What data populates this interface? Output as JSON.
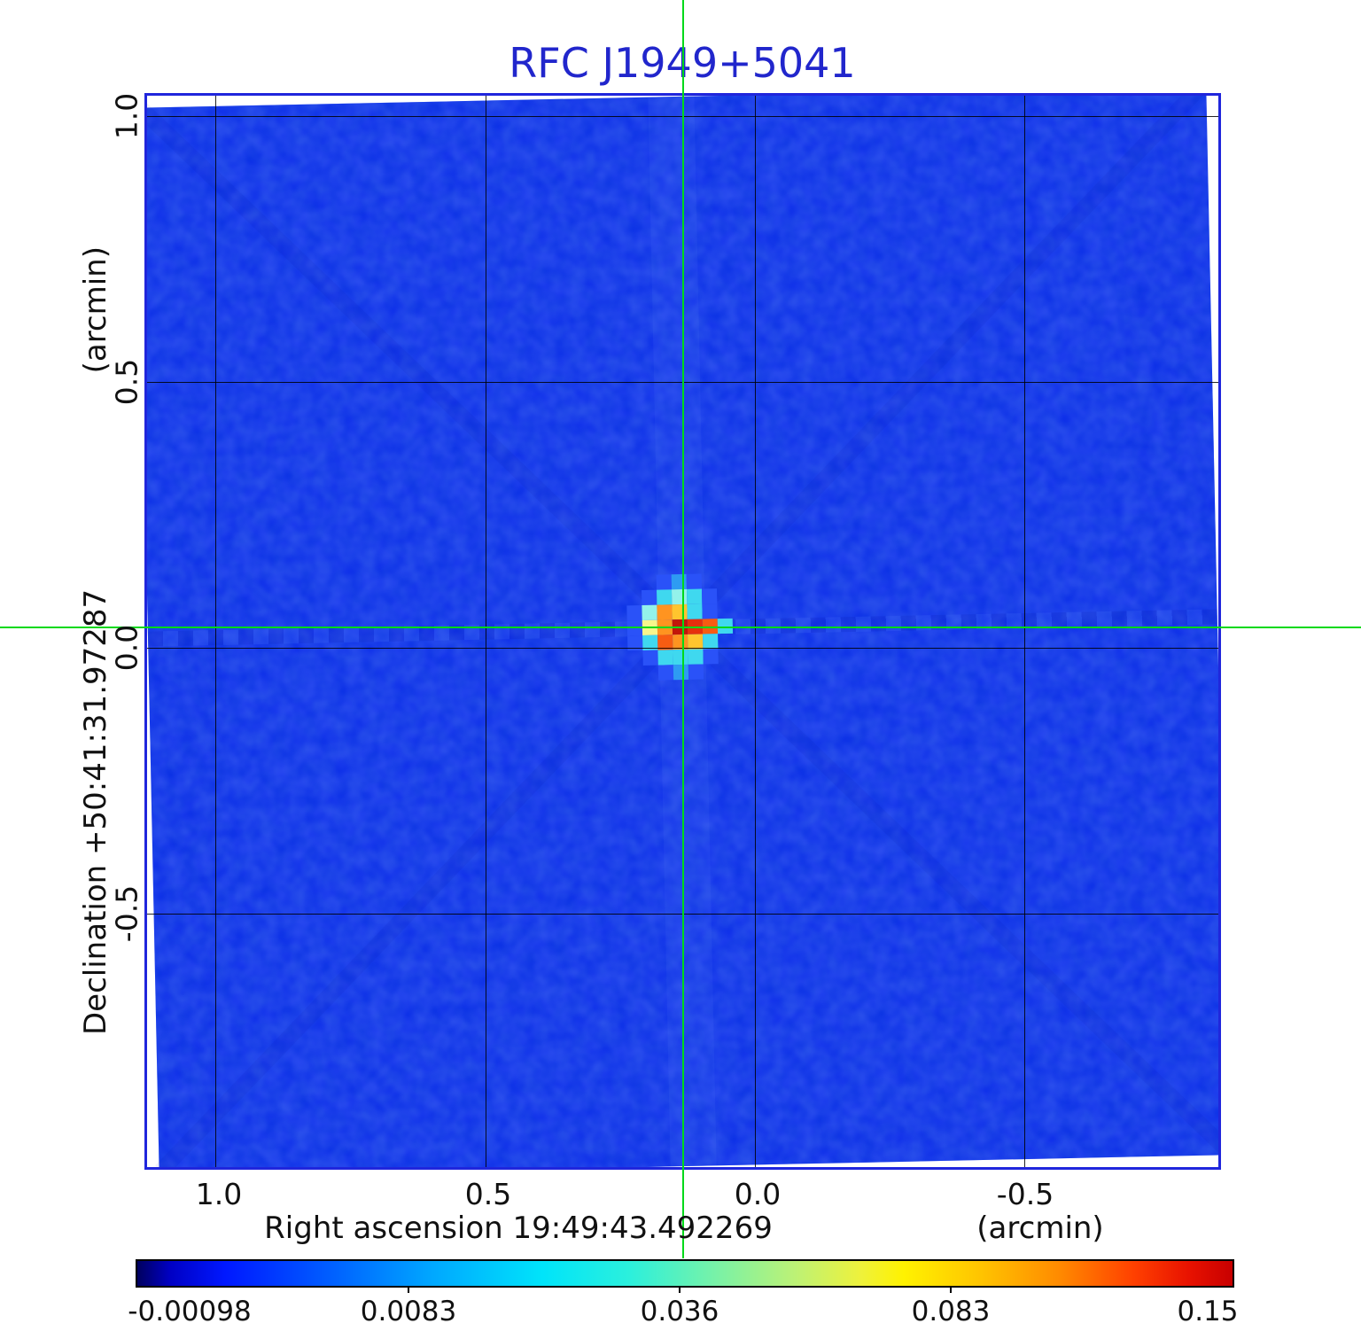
{
  "title": "RFC J1949+5041",
  "chart_data": {
    "type": "heatmap",
    "title": "RFC J1949+5041",
    "description": "Radio interferometric intensity map: uniform blue noise background with one compact bright source at the crosshair position near map center.",
    "x_axis": {
      "title": "Right ascension  19:49:43.492269",
      "unit_label": "(arcmin)",
      "tick_labels": [
        "1.0",
        "0.5",
        "0.0",
        "-0.5"
      ],
      "tick_values_arcmin": [
        1.0,
        0.5,
        0.0,
        -0.5
      ],
      "range_arcmin": [
        1.13,
        -0.86
      ]
    },
    "y_axis": {
      "title": "Declination  +50:41:31.97287",
      "unit_label": "(arcmin)",
      "tick_labels": [
        "1.0",
        "0.5",
        "0.0",
        "-0.5"
      ],
      "tick_values_arcmin": [
        1.0,
        0.5,
        0.0,
        -0.5
      ],
      "range_arcmin": [
        1.04,
        -0.98
      ]
    },
    "colorbar": {
      "tick_labels": [
        "-0.00098",
        "0.0083",
        "0.036",
        "0.083",
        "0.15"
      ],
      "min_value": -0.00098,
      "max_value": 0.15,
      "gradient": [
        "#00005f 0%",
        "#0000c4 3%",
        "#0018ff 8%",
        "#005aff 17%",
        "#00a8ff 27%",
        "#00e4fa 37%",
        "#2cf0dc 45%",
        "#7af2a6 53%",
        "#bcf276 60%",
        "#eef23c 66%",
        "#fff200 70%",
        "#ffc400 77%",
        "#ff8c00 84%",
        "#ff4000 91%",
        "#e81200 96%",
        "#c80000 100%"
      ]
    },
    "crosshair": {
      "x_arcmin": 0.14,
      "y_arcmin": 0.04
    },
    "source": {
      "center_x_arcmin": 0.14,
      "center_y_arcmin": 0.04,
      "peak_value": 0.15,
      "palette": {
        "b1": "#2a52f8",
        "c1": "#2e9bf2",
        "c2": "#3fd8ef",
        "c3": "#93f2ea",
        "y1": "#f7f58c",
        "y2": "#ffc52e",
        "o1": "#ff9420",
        "o2": "#f75c12",
        "r1": "#e62f0d",
        "r2": "#c2170a"
      },
      "pixels": [
        [
          "",
          "",
          "b1",
          "c1",
          "b1",
          "",
          ""
        ],
        [
          "",
          "b1",
          "c2",
          "c3",
          "c2",
          "b1",
          ""
        ],
        [
          "b1",
          "c3",
          "o1",
          "y2",
          "c2",
          "b1",
          ""
        ],
        [
          "b1",
          "y1",
          "o1",
          "r2",
          "r1",
          "o2",
          "c2"
        ],
        [
          "b1",
          "c2",
          "o2",
          "o1",
          "y2",
          "c2",
          ""
        ],
        [
          "",
          "b1",
          "c2",
          "c2",
          "c2",
          "b1",
          ""
        ],
        [
          "",
          "",
          "b1",
          "c1",
          "b1",
          "",
          ""
        ]
      ]
    },
    "grid": true,
    "legend_position": "bottom-colorbar",
    "colors": {
      "background_blue": "#0e2cec",
      "frame_blue": "#2026dc",
      "title_blue": "#2126cc",
      "crosshair_green": "#00d919",
      "grid_black": "#000000"
    }
  }
}
